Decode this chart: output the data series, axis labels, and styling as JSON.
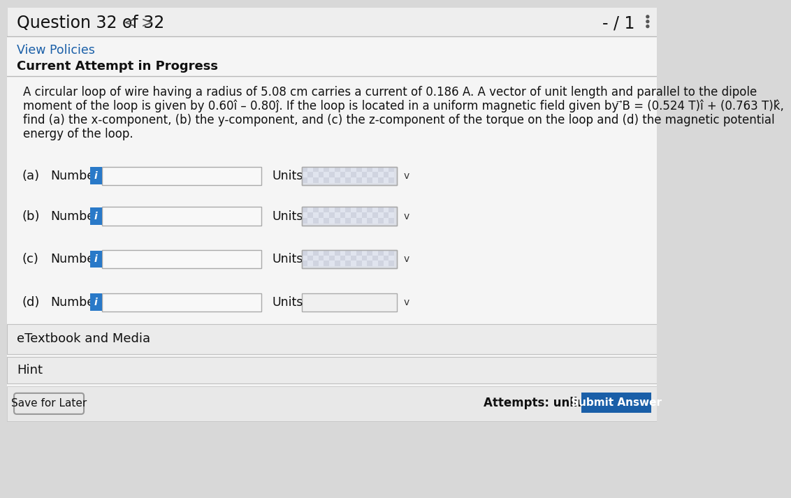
{
  "bg_color": "#d8d8d8",
  "content_bg": "#e8e8e8",
  "white_bg": "#f5f5f5",
  "header_text": "Question 32 of 32",
  "score_text": "- / 1",
  "nav_left": "<",
  "nav_right": ">",
  "view_policies": "View Policies",
  "current_attempt": "Current Attempt in Progress",
  "problem_line1": "A circular loop of wire having a radius of 5.08 cm carries a current of 0.186 A. A vector of unit length and parallel to the dipole",
  "problem_line2": "moment of the loop is given by 0.60î – 0.80ĵ. If the loop is located in a uniform magnetic field given by ⃗B = (0.524 T)î + (0.763 T)k̂,",
  "problem_line3": "find (a) the x-component, (b) the y-component, and (c) the z-component of the torque on the loop and (d) the magnetic potential",
  "problem_line4": "energy of the loop.",
  "parts": [
    "(a)",
    "(b)",
    "(c)",
    "(d)"
  ],
  "number_label": "Number",
  "units_label": "Units",
  "info_icon_color": "#2979c8",
  "input_box_color": "#f8f8f8",
  "units_box_color_checker": "#e0e0e8",
  "units_box_plain": "#f0f0f0",
  "dropdown_char": "v",
  "etextbook": "eTextbook and Media",
  "hint": "Hint",
  "save_later": "Save for Later",
  "attempts": "Attempts: unlimited",
  "submit_btn": "Submit Answer",
  "submit_bg": "#1a5fa8",
  "submit_text_color": "#ffffff",
  "link_color": "#1a5fa8",
  "separator_color": "#b8b8b8",
  "panel_bg": "#e4e4e4"
}
